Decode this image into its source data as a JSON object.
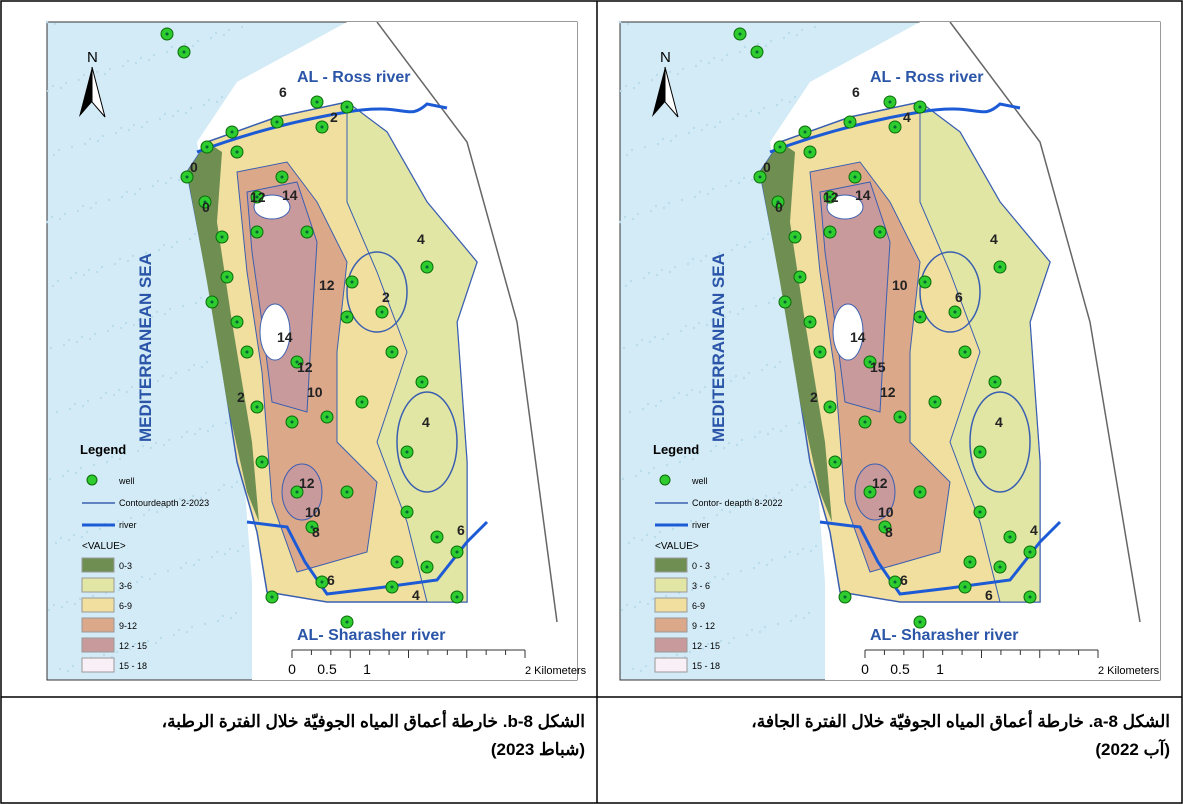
{
  "maps": [
    {
      "north": "N",
      "top_river": "AL - Ross river",
      "sea": "MEDITERRANEAN SEA",
      "bottom_river": "AL- Sharasher river",
      "legend": {
        "title": "Legend",
        "well": "well",
        "contour": "Contourdeapth 2-2023",
        "river": "river",
        "value": "<VALUE>",
        "classes": [
          {
            "label": "0-3",
            "color": "#6f8f52"
          },
          {
            "label": "3-6",
            "color": "#e2e6a4"
          },
          {
            "label": "6-9",
            "color": "#f1dfa0"
          },
          {
            "label": "9-12",
            "color": "#dca88a"
          },
          {
            "label": "12 - 15",
            "color": "#c99a9c"
          },
          {
            "label": "15 - 18",
            "color": "#f8f0f6"
          }
        ]
      },
      "scale": [
        "0",
        "0.5",
        "1",
        "2 Kilometers"
      ],
      "contour_labels": [
        "6",
        "2",
        "0",
        "12",
        "14",
        "0",
        "12",
        "4",
        "2",
        "14",
        "12",
        "10",
        "2",
        "4",
        "12",
        "10",
        "8",
        "6",
        "4",
        "6"
      ]
    },
    {
      "north": "N",
      "top_river": "AL - Ross river",
      "sea": "MEDITERRANEAN SEA",
      "bottom_river": "AL- Sharasher river",
      "legend": {
        "title": "Legend",
        "well": "well",
        "contour": "Contor- deapth 8-2022",
        "river": "river",
        "value": "<VALUE>",
        "classes": [
          {
            "label": "0 - 3",
            "color": "#6f8f52"
          },
          {
            "label": "3 - 6",
            "color": "#e2e6a4"
          },
          {
            "label": "6-9",
            "color": "#f1dfa0"
          },
          {
            "label": "9 - 12",
            "color": "#dca88a"
          },
          {
            "label": "12 - 15",
            "color": "#c99a9c"
          },
          {
            "label": "15 - 18",
            "color": "#f8f0f6"
          }
        ]
      },
      "scale": [
        "0",
        "0.5",
        "1",
        "2 Kilometers"
      ],
      "contour_labels": [
        "6",
        "4",
        "0",
        "12",
        "14",
        "0",
        "10",
        "4",
        "6",
        "14",
        "15",
        "12",
        "2",
        "4",
        "12",
        "10",
        "8",
        "6",
        "6",
        "4"
      ]
    }
  ],
  "captions": [
    {
      "line1": "الشكل b-8. خارطة أعماق المياه الجوفيّة خلال الفترة الرطبة،",
      "line2": "(شباط 2023)"
    },
    {
      "line1": "الشكل a-8.  خارطة أعماق المياه الجوفيّة خلال الفترة الجافة،",
      "line2": "(آب 2022)"
    }
  ]
}
